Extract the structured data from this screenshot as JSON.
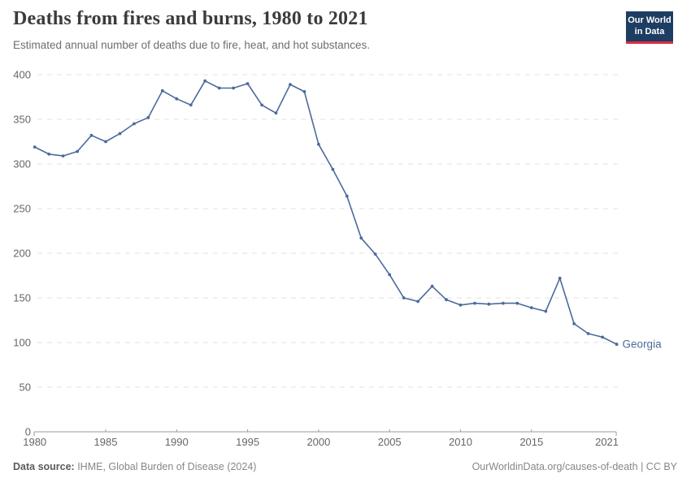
{
  "header": {
    "title": "Deaths from fires and burns, 1980 to 2021",
    "subtitle": "Estimated annual number of deaths due to fire, heat, and hot substances."
  },
  "logo": {
    "line1": "Our World",
    "line2": "in Data"
  },
  "chart_data": {
    "type": "line",
    "title": "Deaths from fires and burns, 1980 to 2021",
    "x": [
      1980,
      1981,
      1982,
      1983,
      1984,
      1985,
      1986,
      1987,
      1988,
      1989,
      1990,
      1991,
      1992,
      1993,
      1994,
      1995,
      1996,
      1997,
      1998,
      1999,
      2000,
      2001,
      2002,
      2003,
      2004,
      2005,
      2006,
      2007,
      2008,
      2009,
      2010,
      2011,
      2012,
      2013,
      2014,
      2015,
      2016,
      2017,
      2018,
      2019,
      2020,
      2021
    ],
    "series": [
      {
        "name": "Georgia",
        "values": [
          319,
          311,
          309,
          314,
          332,
          325,
          334,
          345,
          352,
          382,
          373,
          366,
          393,
          385,
          385,
          390,
          366,
          357,
          389,
          381,
          322,
          294,
          264,
          217,
          199,
          176,
          150,
          146,
          163,
          148,
          142,
          144,
          143,
          144,
          144,
          139,
          135,
          172,
          121,
          110,
          106,
          98
        ]
      }
    ],
    "ylim": [
      0,
      400
    ],
    "yticks": [
      0,
      50,
      100,
      150,
      200,
      250,
      300,
      350,
      400
    ],
    "xticks": [
      1980,
      1985,
      1990,
      1995,
      2000,
      2005,
      2010,
      2015,
      2021
    ],
    "grid": "horizontal-dashed",
    "legend_position": "end-of-line-label",
    "end_label": "Georgia"
  },
  "footer": {
    "source_label": "Data source:",
    "source_text": " IHME, Global Burden of Disease (2024)",
    "right_text": "OurWorldinData.org/causes-of-death | CC BY"
  },
  "colors": {
    "line": "#4C6A9C",
    "grid": "#e2e2e2",
    "axis": "#9a9a9a",
    "tick_text": "#666666",
    "logo_bg": "#1d3d63",
    "logo_accent": "#dc2e41"
  }
}
